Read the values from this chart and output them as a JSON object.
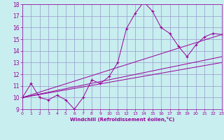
{
  "title": "",
  "xlabel": "Windchill (Refroidissement éolien,°C)",
  "ylabel": "",
  "bg_color": "#c8eef0",
  "line_color": "#990099",
  "grid_color": "#9999cc",
  "x_min": 0,
  "x_max": 23,
  "y_min": 9,
  "y_max": 18,
  "main_series_x": [
    0,
    1,
    2,
    3,
    4,
    5,
    6,
    7,
    8,
    9,
    10,
    11,
    12,
    13,
    14,
    15,
    16,
    17,
    18,
    19,
    20,
    21,
    22,
    23
  ],
  "main_series_y": [
    10.0,
    11.2,
    10.0,
    9.8,
    10.2,
    9.8,
    9.0,
    10.0,
    11.5,
    11.2,
    11.8,
    13.0,
    15.9,
    17.2,
    18.2,
    17.4,
    16.0,
    15.5,
    14.4,
    13.5,
    14.5,
    15.2,
    15.5,
    15.4
  ],
  "line1_x": [
    0,
    23
  ],
  "line1_y": [
    10.0,
    15.4
  ],
  "line2_x": [
    0,
    23
  ],
  "line2_y": [
    10.0,
    13.5
  ],
  "line3_x": [
    0,
    23
  ],
  "line3_y": [
    10.0,
    13.0
  ]
}
